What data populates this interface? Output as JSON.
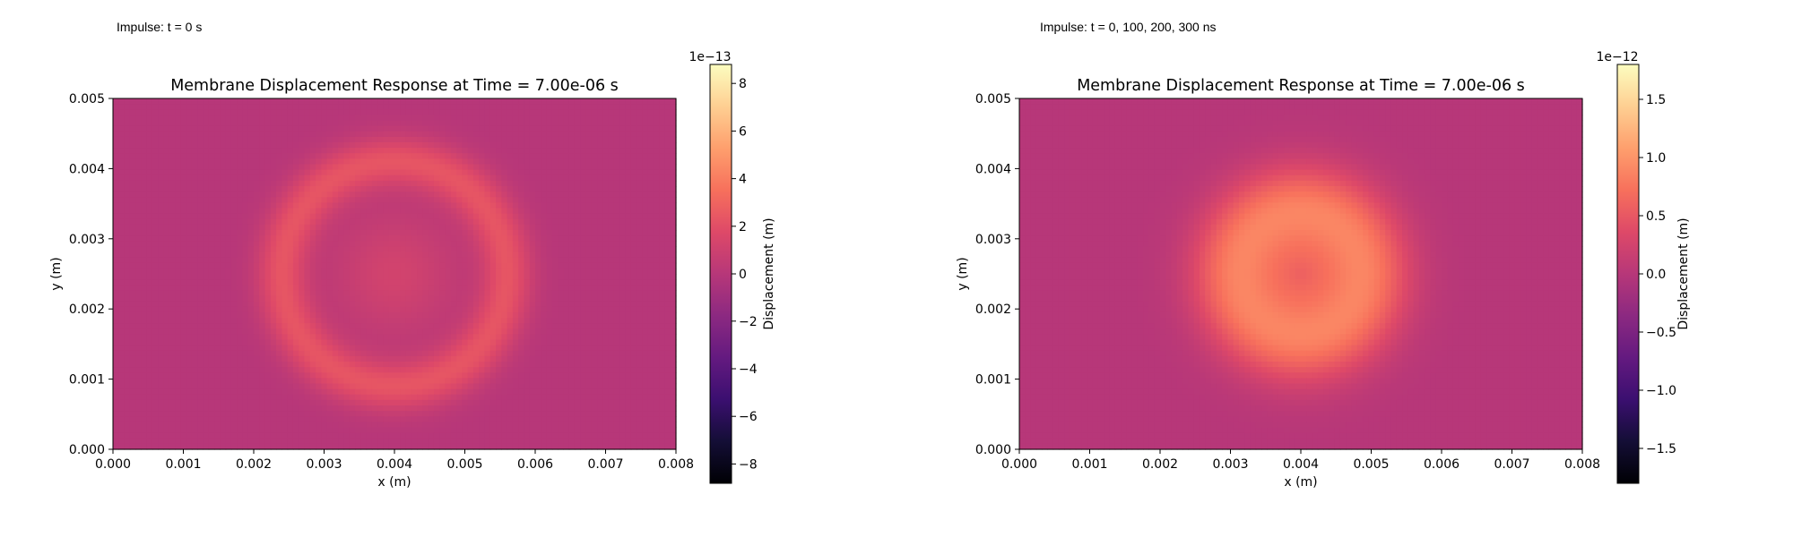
{
  "panels": [
    {
      "caption": "Impulse: t = 0 s",
      "title": "Membrane Displacement Response at Time = 7.00e-06 s",
      "xlabel": "x (m)",
      "ylabel": "y (m)",
      "xticks": [
        "0.000",
        "0.001",
        "0.002",
        "0.003",
        "0.004",
        "0.005",
        "0.006",
        "0.007",
        "0.008"
      ],
      "yticks": [
        "0.000",
        "0.001",
        "0.002",
        "0.003",
        "0.004",
        "0.005"
      ],
      "colorbar": {
        "label": "Displacement (m)",
        "multiplier": "1e−13",
        "ticks": [
          {
            "value": -8,
            "label": "−8"
          },
          {
            "value": -6,
            "label": "−6"
          },
          {
            "value": -4,
            "label": "−4"
          },
          {
            "value": -2,
            "label": "−2"
          },
          {
            "value": 0,
            "label": "0"
          },
          {
            "value": 2,
            "label": "2"
          },
          {
            "value": 4,
            "label": "4"
          },
          {
            "value": 6,
            "label": "6"
          },
          {
            "value": 8,
            "label": "8"
          }
        ]
      }
    },
    {
      "caption": "Impulse: t = 0, 100, 200, 300 ns",
      "title": "Membrane Displacement Response at Time = 7.00e-06 s",
      "xlabel": "x (m)",
      "ylabel": "y (m)",
      "xticks": [
        "0.000",
        "0.001",
        "0.002",
        "0.003",
        "0.004",
        "0.005",
        "0.006",
        "0.007",
        "0.008"
      ],
      "yticks": [
        "0.000",
        "0.001",
        "0.002",
        "0.003",
        "0.004",
        "0.005"
      ],
      "colorbar": {
        "label": "Displacement (m)",
        "multiplier": "1e−12",
        "ticks": [
          {
            "value": -1.5,
            "label": "−1.5"
          },
          {
            "value": -1.0,
            "label": "−1.0"
          },
          {
            "value": -0.5,
            "label": "−0.5"
          },
          {
            "value": 0.0,
            "label": "0.0"
          },
          {
            "value": 0.5,
            "label": "0.5"
          },
          {
            "value": 1.0,
            "label": "1.0"
          },
          {
            "value": 1.5,
            "label": "1.5"
          }
        ]
      }
    }
  ],
  "chart_data": [
    {
      "type": "heatmap",
      "title": "Membrane Displacement Response at Time = 7.00e-06 s",
      "xlabel": "x (m)",
      "ylabel": "y (m)",
      "xlim": [
        0,
        0.008
      ],
      "ylim": [
        0,
        0.005
      ],
      "colormap": "magma",
      "colorbar_range": [
        -8.8e-13,
        8.8e-13
      ],
      "colorbar_label": "Displacement (m)",
      "field": {
        "center_x": 0.004,
        "center_y": 0.0025,
        "baseline": 0.0,
        "features": [
          {
            "kind": "ring",
            "radius": 0.0016,
            "width": 0.0005,
            "peak": 2.3e-13
          },
          {
            "kind": "center",
            "width": 0.0012,
            "peak": 1.2e-13
          }
        ]
      }
    },
    {
      "type": "heatmap",
      "title": "Membrane Displacement Response at Time = 7.00e-06 s",
      "xlabel": "x (m)",
      "ylabel": "y (m)",
      "xlim": [
        0,
        0.008
      ],
      "ylim": [
        0,
        0.005
      ],
      "colormap": "magma",
      "colorbar_range": [
        -1.8e-12,
        1.8e-12
      ],
      "colorbar_label": "Displacement (m)",
      "field": {
        "center_x": 0.004,
        "center_y": 0.0025,
        "baseline": 0.0,
        "features": [
          {
            "kind": "ring",
            "radius": 0.0009,
            "width": 0.0009,
            "peak": 8.5e-13
          },
          {
            "kind": "center",
            "width": 0.0008,
            "peak": 4.5e-13
          }
        ]
      }
    }
  ]
}
